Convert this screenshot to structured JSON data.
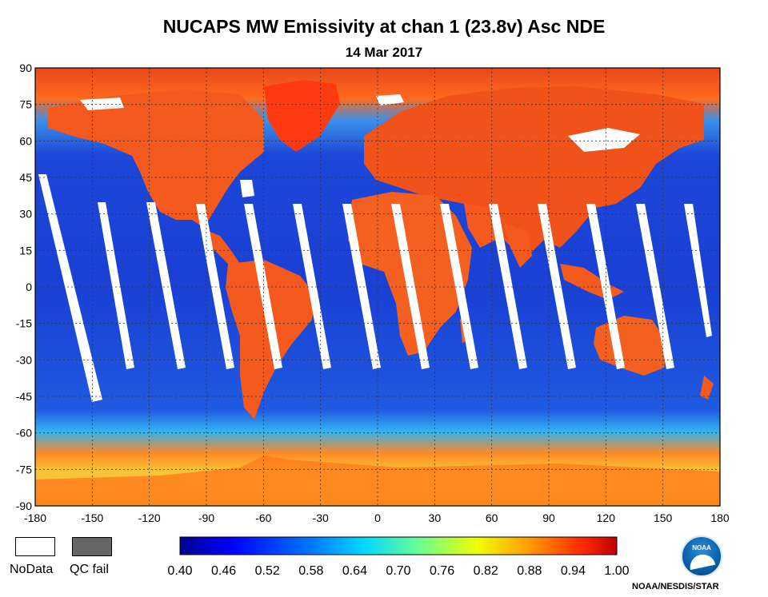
{
  "title": "NUCAPS MW Emissivity at chan 1 (23.8v)  Asc  NDE",
  "subtitle": "14 Mar 2017",
  "map": {
    "x_ticks": [
      "-180",
      "-150",
      "-120",
      "-90",
      "-60",
      "-30",
      "0",
      "30",
      "60",
      "90",
      "120",
      "150",
      "180"
    ],
    "y_ticks": [
      "90",
      "75",
      "60",
      "45",
      "30",
      "15",
      "0",
      "-15",
      "-30",
      "-45",
      "-60",
      "-75",
      "-90"
    ],
    "ocean_color": "#1c4fd6",
    "land_color": "#f0551c",
    "nodata_color": "#ffffff",
    "qcfail_color": "#666666"
  },
  "legend": {
    "nodata_label": "NoData",
    "qcfail_label": "QC fail"
  },
  "colorbar": {
    "ticks": [
      "0.40",
      "0.46",
      "0.52",
      "0.58",
      "0.64",
      "0.70",
      "0.76",
      "0.82",
      "0.88",
      "0.94",
      "1.00"
    ]
  },
  "logo_text": "NOAA",
  "credit": "NOAA/NESDIS/STAR"
}
